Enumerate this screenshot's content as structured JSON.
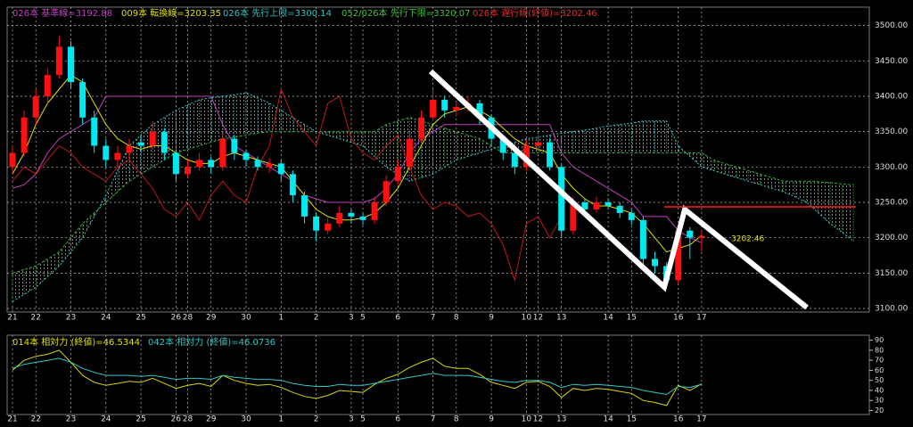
{
  "chart_data": [
    {
      "type": "candlestick",
      "legend": [
        {
          "text": "026本 基準線=3192.88",
          "color": "#c040c0"
        },
        {
          "text": "009本 転換線=3203.35",
          "color": "#e0e000"
        },
        {
          "text": "026本 先行上限=3300.14",
          "color": "#30c0c0"
        },
        {
          "text": "052/026本 先行下限=3320.07",
          "color": "#40c040"
        },
        {
          "text": "026本 遅行線(終値)=3202.46",
          "color": "#e03030"
        }
      ],
      "price_label": "3202.46",
      "categories": [
        "21",
        null,
        "22",
        null,
        null,
        "23",
        null,
        null,
        "24",
        null,
        null,
        "25",
        null,
        null,
        "26",
        "28",
        null,
        "29",
        null,
        null,
        "30",
        null,
        null,
        "1",
        null,
        null,
        "2",
        null,
        null,
        "3",
        "5",
        null,
        null,
        "6",
        null,
        null,
        "7",
        null,
        "8",
        null,
        null,
        "9",
        null,
        null,
        "10",
        "12",
        null,
        "13",
        null,
        null,
        null,
        "14",
        null,
        "15",
        null,
        null,
        null,
        "16",
        null,
        "17",
        null,
        null,
        null,
        null,
        null,
        null,
        null,
        null,
        null,
        null,
        null,
        null,
        null
      ],
      "up_color": "#ff1010",
      "down_color": "#00e8f0",
      "candles": [
        [
          3300,
          3330,
          3290,
          3320
        ],
        [
          3320,
          3380,
          3315,
          3370
        ],
        [
          3370,
          3410,
          3360,
          3400
        ],
        [
          3400,
          3440,
          3390,
          3430
        ],
        [
          3430,
          3485,
          3425,
          3470
        ],
        [
          3470,
          3478,
          3410,
          3420
        ],
        [
          3420,
          3425,
          3360,
          3370
        ],
        [
          3370,
          3380,
          3320,
          3330
        ],
        [
          3330,
          3340,
          3300,
          3310
        ],
        [
          3310,
          3330,
          3300,
          3320
        ],
        [
          3320,
          3340,
          3310,
          3330
        ],
        [
          3335,
          3345,
          3320,
          3330
        ],
        [
          3330,
          3365,
          3325,
          3350
        ],
        [
          3350,
          3355,
          3310,
          3320
        ],
        [
          3320,
          3325,
          3280,
          3290
        ],
        [
          3290,
          3310,
          3285,
          3300
        ],
        [
          3300,
          3320,
          3295,
          3310
        ],
        [
          3310,
          3315,
          3290,
          3300
        ],
        [
          3300,
          3350,
          3295,
          3340
        ],
        [
          3340,
          3345,
          3310,
          3320
        ],
        [
          3320,
          3325,
          3300,
          3310
        ],
        [
          3310,
          3315,
          3295,
          3300
        ],
        [
          3300,
          3312,
          3292,
          3305
        ],
        [
          3305,
          3310,
          3280,
          3290
        ],
        [
          3290,
          3295,
          3250,
          3260
        ],
        [
          3260,
          3265,
          3220,
          3230
        ],
        [
          3230,
          3235,
          3195,
          3210
        ],
        [
          3210,
          3228,
          3205,
          3220
        ],
        [
          3220,
          3245,
          3215,
          3235
        ],
        [
          3235,
          3240,
          3220,
          3230
        ],
        [
          3230,
          3235,
          3218,
          3225
        ],
        [
          3225,
          3258,
          3220,
          3250
        ],
        [
          3250,
          3288,
          3245,
          3280
        ],
        [
          3280,
          3310,
          3275,
          3300
        ],
        [
          3300,
          3350,
          3295,
          3340
        ],
        [
          3340,
          3380,
          3335,
          3370
        ],
        [
          3370,
          3410,
          3365,
          3395
        ],
        [
          3395,
          3400,
          3370,
          3380
        ],
        [
          3380,
          3392,
          3372,
          3385
        ],
        [
          3385,
          3400,
          3378,
          3390
        ],
        [
          3390,
          3395,
          3360,
          3370
        ],
        [
          3370,
          3375,
          3330,
          3340
        ],
        [
          3340,
          3345,
          3310,
          3320
        ],
        [
          3320,
          3325,
          3290,
          3300
        ],
        [
          3300,
          3338,
          3295,
          3330
        ],
        [
          3330,
          3345,
          3322,
          3335
        ],
        [
          3335,
          3340,
          3295,
          3300
        ],
        [
          3300,
          3305,
          3200,
          3210
        ],
        [
          3210,
          3258,
          3205,
          3250
        ],
        [
          3250,
          3255,
          3232,
          3240
        ],
        [
          3240,
          3258,
          3236,
          3250
        ],
        [
          3250,
          3256,
          3240,
          3245
        ],
        [
          3245,
          3250,
          3228,
          3235
        ],
        [
          3235,
          3240,
          3218,
          3225
        ],
        [
          3225,
          3230,
          3160,
          3170
        ],
        [
          3170,
          3180,
          3150,
          3160
        ],
        [
          3160,
          3165,
          3130,
          3140
        ],
        [
          3140,
          3215,
          3135,
          3210
        ],
        [
          3210,
          3215,
          3170,
          3200
        ],
        [
          3200,
          3210,
          3180,
          3202.46
        ],
        null,
        null,
        null,
        null,
        null,
        null,
        null,
        null,
        null,
        null,
        null,
        null,
        null
      ],
      "series": [
        {
          "color": "#c040c0",
          "values": [
            3270,
            3275,
            3290,
            3320,
            3340,
            3350,
            3360,
            3370,
            3400,
            3400,
            3400,
            3400,
            3400,
            3400,
            3400,
            3400,
            3400,
            3400,
            3360,
            3330,
            3320,
            3310,
            3300,
            3290,
            3280,
            3260,
            3255,
            3250,
            3250,
            3250,
            3250,
            3255,
            3270,
            3290,
            3320,
            3340,
            3350,
            3360,
            3360,
            3360,
            3360,
            3360,
            3360,
            3360,
            3360,
            3360,
            3360,
            3320,
            3300,
            3290,
            3280,
            3270,
            3260,
            3250,
            3230,
            3230,
            3230,
            3210,
            3200,
            3192.88,
            null,
            null,
            null,
            null,
            null,
            null,
            null,
            null,
            null,
            null,
            null,
            null,
            null
          ]
        },
        {
          "color": "#e0e000",
          "values": [
            3290,
            3320,
            3360,
            3390,
            3410,
            3430,
            3420,
            3390,
            3360,
            3340,
            3330,
            3325,
            3330,
            3330,
            3320,
            3310,
            3305,
            3305,
            3315,
            3320,
            3315,
            3310,
            3305,
            3300,
            3280,
            3260,
            3240,
            3230,
            3225,
            3225,
            3228,
            3235,
            3250,
            3270,
            3300,
            3330,
            3360,
            3375,
            3380,
            3385,
            3380,
            3370,
            3355,
            3340,
            3330,
            3325,
            3320,
            3290,
            3270,
            3255,
            3245,
            3245,
            3240,
            3235,
            3220,
            3200,
            3180,
            3185,
            3190,
            3203.35,
            null,
            null,
            null,
            null,
            null,
            null,
            null,
            null,
            null,
            null,
            null,
            null,
            null
          ]
        },
        {
          "color": "#c01818",
          "values": [
            3280,
            3300,
            3290,
            3310,
            3330,
            3320,
            3300,
            3290,
            3280,
            3300,
            3310,
            3290,
            3270,
            3240,
            3230,
            3250,
            3225,
            3260,
            3280,
            3260,
            3250,
            3300,
            3330,
            3410,
            3370,
            3350,
            3330,
            3390,
            3400,
            3340,
            3320,
            3310,
            3330,
            3345,
            3300,
            3260,
            3240,
            3250,
            3245,
            3230,
            3235,
            3220,
            3190,
            3140,
            3220,
            3230,
            3200,
            3230,
            null,
            null,
            null,
            null,
            null,
            null,
            null,
            null,
            null,
            null,
            null,
            null,
            null,
            null,
            null,
            null,
            null,
            null,
            null,
            null,
            null,
            null,
            null,
            null,
            null
          ]
        }
      ],
      "cloud": {
        "color_a": "#30c8c8",
        "color_b": "#30b030",
        "a": [
          3110,
          3120,
          3130,
          3145,
          3160,
          3180,
          3200,
          3230,
          3260,
          3295,
          3330,
          3345,
          3360,
          3370,
          3380,
          3388,
          3395,
          3398,
          3400,
          3402,
          3405,
          3398,
          3390,
          3380,
          3370,
          3360,
          3350,
          3345,
          3340,
          3335,
          3330,
          3315,
          3300,
          3290,
          3280,
          3285,
          3290,
          3300,
          3310,
          3315,
          3320,
          3325,
          3330,
          3335,
          3340,
          3342,
          3345,
          3348,
          3350,
          3352,
          3355,
          3358,
          3360,
          3362,
          3365,
          3365,
          3365,
          3330,
          3315,
          3300.14,
          3295,
          3290,
          3285,
          3280,
          3275,
          3270,
          3265,
          3258,
          3250,
          3235,
          3220,
          3208,
          3195
        ],
        "b": [
          3150,
          3155,
          3160,
          3170,
          3180,
          3200,
          3220,
          3235,
          3250,
          3265,
          3280,
          3290,
          3300,
          3310,
          3320,
          3325,
          3330,
          3335,
          3340,
          3342,
          3345,
          3348,
          3350,
          3350,
          3350,
          3350,
          3350,
          3350,
          3350,
          3350,
          3350,
          3350,
          3360,
          3365,
          3370,
          3365,
          3360,
          3355,
          3350,
          3345,
          3340,
          3330,
          3320,
          3320,
          3320,
          3320,
          3320,
          3320,
          3320,
          3320,
          3320,
          3320,
          3320,
          3320,
          3320,
          3320,
          3320,
          3320,
          3320,
          3320.07,
          3310,
          3305,
          3300,
          3295,
          3290,
          3285,
          3280,
          3280,
          3280,
          3279,
          3278,
          3276,
          3275
        ]
      },
      "ylim": [
        3095,
        3526
      ],
      "yticks": [
        {
          "value": 3100,
          "label": "3100.00"
        },
        {
          "value": 3150,
          "label": "3150.00"
        },
        {
          "value": 3200,
          "label": "3200.00"
        },
        {
          "value": 3250,
          "label": "3250.00"
        },
        {
          "value": 3300,
          "label": "3300.00"
        },
        {
          "value": 3350,
          "label": "3350.00"
        },
        {
          "value": 3400,
          "label": "3400.00"
        },
        {
          "value": 3450,
          "label": "3450.00"
        },
        {
          "value": 3500,
          "label": "3500.00"
        }
      ],
      "grid": true
    },
    {
      "type": "line",
      "legend": [
        {
          "text": "014本 相対力 (終値)=46.5344",
          "color": "#e0e000"
        },
        {
          "text": "042本 相対力 (終値)=46.0736",
          "color": "#30c8c8"
        }
      ],
      "series": [
        {
          "color": "#d8d800",
          "values": [
            60,
            70,
            74,
            76,
            80,
            68,
            55,
            48,
            45,
            47,
            49,
            48,
            52,
            47,
            42,
            45,
            47,
            44,
            55,
            50,
            47,
            45,
            46,
            43,
            38,
            34,
            32,
            35,
            40,
            39,
            38,
            46,
            52,
            56,
            63,
            68,
            72,
            64,
            62,
            62,
            56,
            48,
            45,
            42,
            48,
            49,
            44,
            33,
            42,
            40,
            42,
            41,
            39,
            37,
            30,
            28,
            25,
            45,
            40,
            46.5344,
            null,
            null,
            null,
            null,
            null,
            null,
            null,
            null,
            null,
            null,
            null,
            null,
            null
          ]
        },
        {
          "color": "#30c8c8",
          "values": [
            62,
            66,
            68,
            70,
            72,
            68,
            62,
            58,
            55,
            55,
            55,
            54,
            55,
            53,
            51,
            52,
            52,
            51,
            55,
            53,
            52,
            51,
            51,
            50,
            47,
            45,
            44,
            44,
            46,
            45,
            45,
            47,
            49,
            51,
            53,
            55,
            57,
            55,
            55,
            55,
            53,
            51,
            49,
            48,
            50,
            50,
            48,
            43,
            46,
            45,
            46,
            45,
            44,
            43,
            40,
            38,
            36,
            44,
            43,
            46.0736,
            null,
            null,
            null,
            null,
            null,
            null,
            null,
            null,
            null,
            null,
            null,
            null,
            null
          ]
        }
      ],
      "ylim": [
        16,
        95
      ],
      "yticks": [
        20,
        30,
        40,
        50,
        60,
        70,
        80,
        90
      ]
    }
  ]
}
